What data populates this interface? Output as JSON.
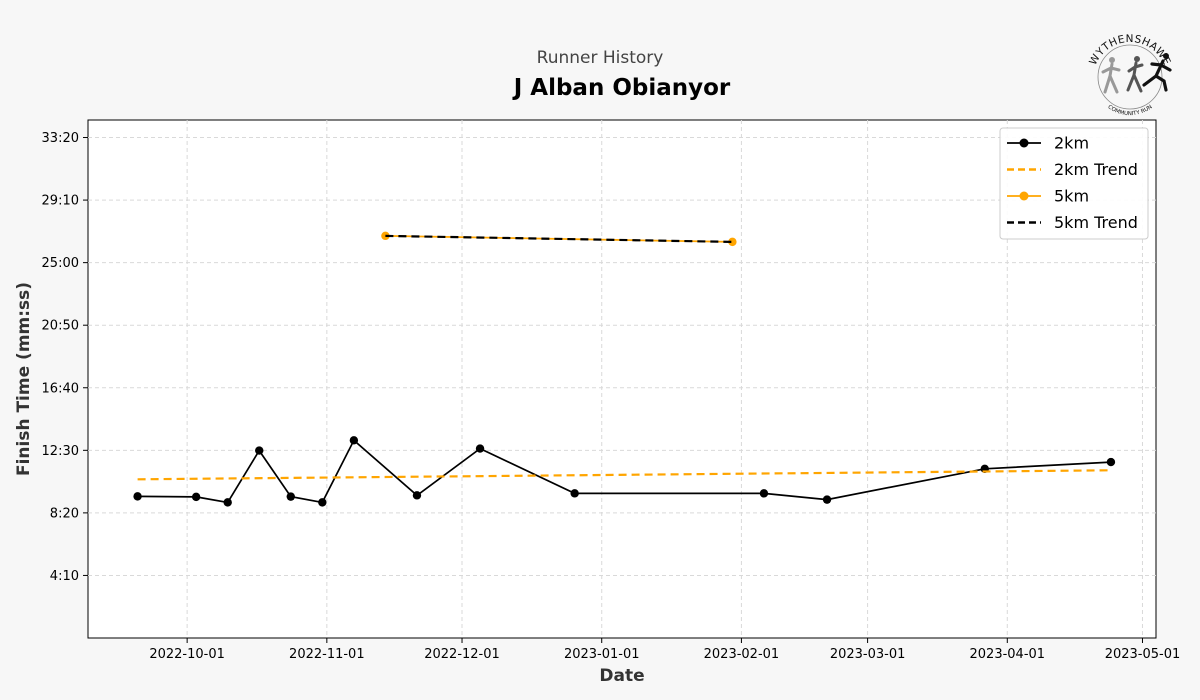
{
  "header": {
    "subtitle": "Runner History",
    "title": "J Alban Obianyor"
  },
  "logo": {
    "top_text": "WYTHENSHAWE",
    "bottom_text": "COMMUNITY RUN"
  },
  "chart_data": {
    "type": "line",
    "title": "J Alban Obianyor",
    "subtitle": "Runner History",
    "xlabel": "Date",
    "ylabel": "Finish Time (mm:ss)",
    "x_ticks": [
      "2022-10-01",
      "2022-11-01",
      "2022-12-01",
      "2023-01-01",
      "2023-02-01",
      "2023-03-01",
      "2023-04-01",
      "2023-05-01"
    ],
    "y_ticks": [
      "4:10",
      "8:20",
      "12:30",
      "16:40",
      "20:50",
      "25:00",
      "29:10",
      "33:20"
    ],
    "y_tick_seconds": [
      250,
      500,
      750,
      1000,
      1250,
      1500,
      1750,
      2000
    ],
    "xlim": [
      "2022-09-09",
      "2023-05-04"
    ],
    "ylim_seconds": [
      0,
      2070
    ],
    "grid": true,
    "legend_position": "top-right",
    "series": [
      {
        "name": "2km",
        "color": "#000000",
        "style": "solid-markers",
        "points": [
          [
            "2022-09-20",
            566
          ],
          [
            "2022-10-03",
            564
          ],
          [
            "2022-10-10",
            542
          ],
          [
            "2022-10-17",
            749
          ],
          [
            "2022-10-24",
            565
          ],
          [
            "2022-10-31",
            542
          ],
          [
            "2022-11-07",
            790
          ],
          [
            "2022-11-21",
            570
          ],
          [
            "2022-12-05",
            757
          ],
          [
            "2022-12-26",
            578
          ],
          [
            "2023-02-06",
            578
          ],
          [
            "2023-02-20",
            553
          ],
          [
            "2023-03-27",
            676
          ],
          [
            "2023-04-24",
            703
          ]
        ]
      },
      {
        "name": "2km Trend",
        "color": "#ffa500",
        "style": "dashed",
        "points": [
          [
            "2022-09-20",
            634
          ],
          [
            "2023-04-24",
            670
          ]
        ]
      },
      {
        "name": "5km",
        "color": "#ffa500",
        "style": "solid-markers",
        "points": [
          [
            "2022-11-14",
            1607
          ],
          [
            "2023-01-30",
            1583
          ]
        ]
      },
      {
        "name": "5km Trend",
        "color": "#000000",
        "style": "dashed",
        "points": [
          [
            "2022-11-14",
            1607
          ],
          [
            "2023-01-30",
            1583
          ]
        ]
      }
    ]
  }
}
